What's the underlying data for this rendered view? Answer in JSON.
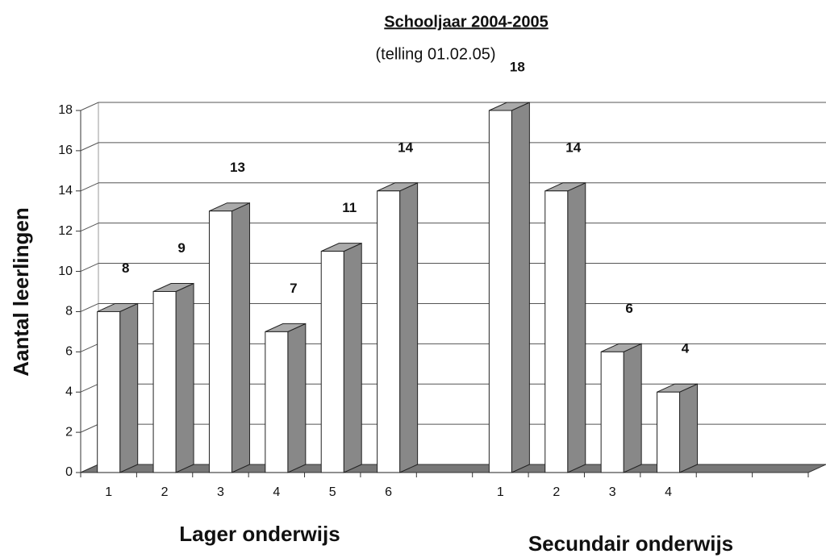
{
  "chart_data": {
    "type": "bar3d",
    "title": "Schooljaar  2004-2005",
    "subtitle": "(telling 01.02.05)",
    "y_label": "Aantal leerlingen",
    "annotations": [
      "Lager onderwijs",
      "Secundair onderwijs"
    ],
    "categories": [
      "1",
      "2",
      "3",
      "4",
      "5",
      "6",
      null,
      "1",
      "2",
      "3",
      "4",
      null,
      null
    ],
    "series": [
      {
        "name": "Aantal leerlingen",
        "color": "#ffffff",
        "values": [
          8,
          9,
          13,
          7,
          11,
          14,
          null,
          18,
          14,
          6,
          4,
          null,
          null
        ]
      }
    ],
    "ylim": [
      0,
      18
    ],
    "yticks": [
      0,
      2,
      4,
      6,
      8,
      10,
      12,
      14,
      16,
      18
    ],
    "grid": true
  }
}
